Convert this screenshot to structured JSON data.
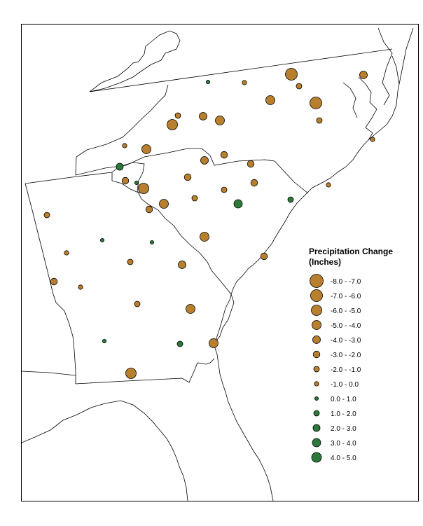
{
  "colors": {
    "decrease": "#B8802E",
    "increase": "#2C7A3A",
    "outline": "#000000",
    "boundary": "#000000"
  },
  "legend": {
    "title_line1": "Precipitation Change",
    "title_line2": "(Inches)",
    "classes": [
      {
        "label": "-8.0 - -7.0",
        "min": -8.0,
        "max": -7.0,
        "color": "decrease"
      },
      {
        "label": "-7.0 - -6.0",
        "min": -7.0,
        "max": -6.0,
        "color": "decrease"
      },
      {
        "label": "-6.0 - -5.0",
        "min": -6.0,
        "max": -5.0,
        "color": "decrease"
      },
      {
        "label": "-5.0 - -4.0",
        "min": -5.0,
        "max": -4.0,
        "color": "decrease"
      },
      {
        "label": "-4.0 - -3.0",
        "min": -4.0,
        "max": -3.0,
        "color": "decrease"
      },
      {
        "label": "-3.0 - -2.0",
        "min": -3.0,
        "max": -2.0,
        "color": "decrease"
      },
      {
        "label": "-2.0 - -1.0",
        "min": -2.0,
        "max": -1.0,
        "color": "decrease"
      },
      {
        "label": "-1.0 - 0.0",
        "min": -1.0,
        "max": 0.0,
        "color": "decrease"
      },
      {
        "label": "0.0 - 1.0",
        "min": 0.0,
        "max": 1.0,
        "color": "increase"
      },
      {
        "label": "1.0 - 2.0",
        "min": 1.0,
        "max": 2.0,
        "color": "increase"
      },
      {
        "label": "2.0 - 3.0",
        "min": 2.0,
        "max": 3.0,
        "color": "increase"
      },
      {
        "label": "3.0 - 4.0",
        "min": 3.0,
        "max": 4.0,
        "color": "increase"
      },
      {
        "label": "4.0 - 5.0",
        "min": 4.0,
        "max": 5.0,
        "color": "increase"
      }
    ]
  }
}
